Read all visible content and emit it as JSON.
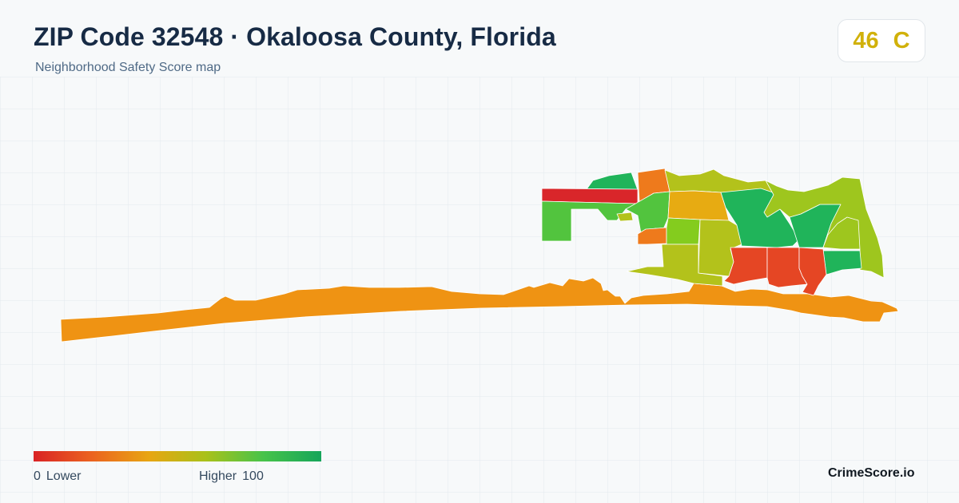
{
  "header": {
    "title": "ZIP Code 32548 · Okaloosa County, Florida",
    "subtitle": "Neighborhood Safety Score map"
  },
  "grade": {
    "score": "46",
    "letter": "C",
    "color": "#d1b10a"
  },
  "legend": {
    "low_value": "0",
    "low_label": "Lower",
    "high_label": "Higher",
    "high_value": "100",
    "colors": [
      "#d92325",
      "#eb6220",
      "#e8a512",
      "#a9c11a",
      "#46c34a",
      "#16a55a"
    ]
  },
  "brand": "CrimeScore.io",
  "map": {
    "palette": {
      "red": "#d9262a",
      "red_orange": "#e54624",
      "orange": "#ee7a1c",
      "amber": "#ef9313",
      "yellow_orange": "#e7ab12",
      "olive": "#b3c21b",
      "yellow_green": "#9ec61e",
      "lime": "#84cc1e",
      "light_green": "#52c43e",
      "green": "#20b45a"
    }
  }
}
